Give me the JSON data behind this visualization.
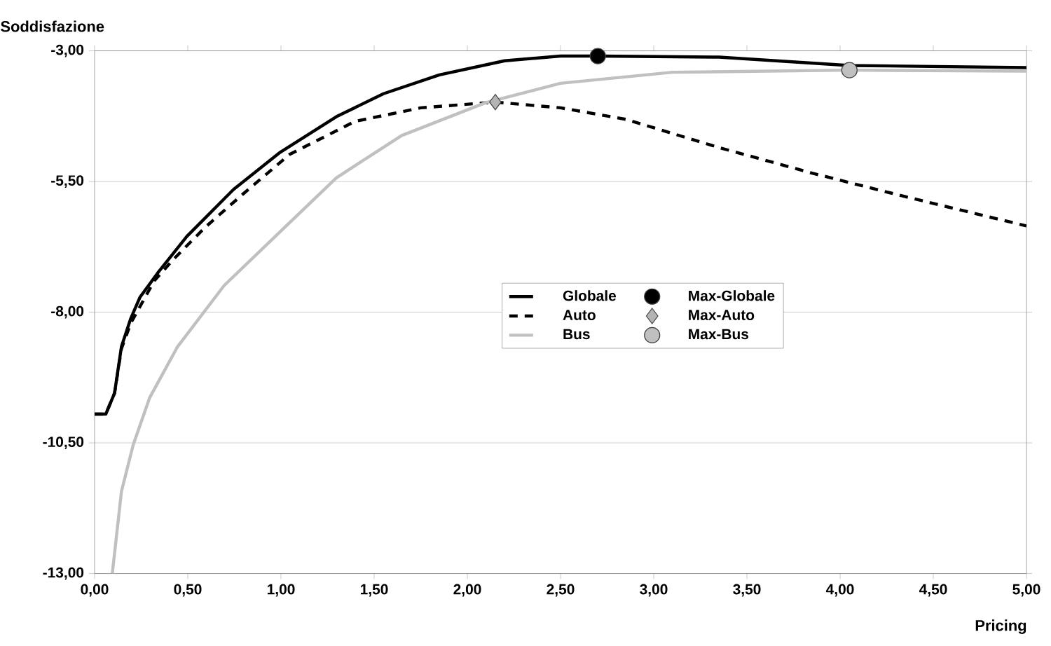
{
  "chart_data": {
    "type": "line",
    "xlabel": "Pricing",
    "ylabel": "Soddisfazione",
    "xlim": [
      0,
      5
    ],
    "ylim": [
      -13,
      -3
    ],
    "xticks": [
      {
        "value": 0,
        "label": "0,00"
      },
      {
        "value": 0.5,
        "label": "0,50"
      },
      {
        "value": 1,
        "label": "1,00"
      },
      {
        "value": 1.5,
        "label": "1,50"
      },
      {
        "value": 2,
        "label": "2,00"
      },
      {
        "value": 2.5,
        "label": "2,50"
      },
      {
        "value": 3,
        "label": "3,00"
      },
      {
        "value": 3.5,
        "label": "3,50"
      },
      {
        "value": 4,
        "label": "4,00"
      },
      {
        "value": 4.5,
        "label": "4,50"
      },
      {
        "value": 5,
        "label": "5,00"
      }
    ],
    "yticks": [
      {
        "value": -13,
        "label": "-13,00"
      },
      {
        "value": -10.5,
        "label": "-10,50"
      },
      {
        "value": -8,
        "label": "-8,00"
      },
      {
        "value": -5.5,
        "label": "-5,50"
      },
      {
        "value": -3,
        "label": "-3,00"
      }
    ],
    "grid": "y",
    "legend": "center",
    "series": [
      {
        "name": "Globale",
        "type": "line",
        "color": "#000000",
        "line_style": "solid",
        "x": [
          0,
          0.06,
          0.107,
          0.144,
          0.194,
          0.244,
          0.345,
          0.495,
          0.746,
          0.996,
          1.297,
          1.55,
          1.85,
          2.2,
          2.5,
          2.7,
          3.35,
          4.05,
          5.0
        ],
        "values": [
          -9.95,
          -9.95,
          -9.55,
          -8.66,
          -8.12,
          -7.71,
          -7.22,
          -6.55,
          -5.65,
          -4.94,
          -4.26,
          -3.82,
          -3.46,
          -3.19,
          -3.1,
          -3.1,
          -3.12,
          -3.28,
          -3.32
        ]
      },
      {
        "name": "Auto",
        "type": "line",
        "color": "#000000",
        "line_style": "dashed",
        "x": [
          0,
          0.06,
          0.107,
          0.144,
          0.194,
          0.32,
          0.42,
          0.595,
          0.796,
          1.047,
          1.397,
          1.75,
          2.15,
          2.5,
          2.85,
          3.35,
          3.85,
          4.35,
          5.0
        ],
        "values": [
          -9.95,
          -9.95,
          -9.55,
          -8.7,
          -8.21,
          -7.4,
          -7.0,
          -6.37,
          -5.74,
          -4.98,
          -4.35,
          -4.09,
          -3.98,
          -4.09,
          -4.31,
          -4.85,
          -5.34,
          -5.79,
          -6.35
        ]
      },
      {
        "name": "Bus",
        "type": "line",
        "color": "#c0c0c0",
        "line_style": "solid",
        "x": [
          0.095,
          0.144,
          0.207,
          0.295,
          0.445,
          0.695,
          0.996,
          1.297,
          1.648,
          2.1,
          2.5,
          3.1,
          4.05,
          5.0
        ],
        "values": [
          -13.0,
          -11.43,
          -10.54,
          -9.64,
          -8.66,
          -7.49,
          -6.46,
          -5.43,
          -4.62,
          -3.99,
          -3.62,
          -3.41,
          -3.37,
          -3.39
        ]
      },
      {
        "name": "Max-Globale",
        "type": "scatter",
        "marker": "circle",
        "color": "#000000",
        "x": [
          2.7
        ],
        "values": [
          -3.1
        ]
      },
      {
        "name": "Max-Auto",
        "type": "scatter",
        "marker": "diamond",
        "color": "#b4b4b4",
        "x": [
          2.15
        ],
        "values": [
          -3.98
        ]
      },
      {
        "name": "Max-Bus",
        "type": "scatter",
        "marker": "circle",
        "color": "#c0c0c0",
        "x": [
          4.05
        ],
        "values": [
          -3.37
        ]
      }
    ]
  }
}
